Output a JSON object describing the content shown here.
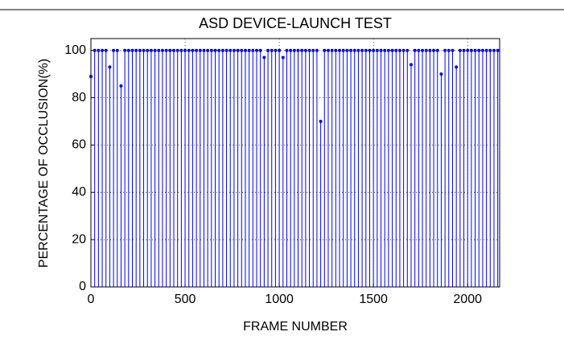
{
  "chart_data": {
    "type": "stem",
    "title": "ASD DEVICE-LAUNCH TEST",
    "x_label": "FRAME NUMBER",
    "y_label": "PERCENTAGE OF OCCLUSION(%)",
    "color": "#0000ff",
    "grid": true,
    "xlim": [
      0,
      2170
    ],
    "xticks": [
      0,
      500,
      1000,
      1500,
      2000
    ],
    "ylim": [
      0,
      105
    ],
    "yticks": [
      0,
      20,
      40,
      60,
      80,
      100
    ],
    "x": [
      0,
      20,
      40,
      60,
      80,
      100,
      120,
      140,
      160,
      180,
      200,
      220,
      240,
      260,
      280,
      300,
      320,
      340,
      360,
      380,
      400,
      420,
      440,
      460,
      480,
      500,
      520,
      540,
      560,
      580,
      600,
      620,
      640,
      660,
      680,
      700,
      720,
      740,
      760,
      780,
      800,
      820,
      840,
      860,
      880,
      900,
      920,
      940,
      960,
      980,
      1000,
      1020,
      1040,
      1060,
      1080,
      1100,
      1120,
      1140,
      1160,
      1180,
      1200,
      1220,
      1240,
      1260,
      1280,
      1300,
      1320,
      1340,
      1360,
      1380,
      1400,
      1420,
      1440,
      1460,
      1480,
      1500,
      1520,
      1540,
      1560,
      1580,
      1600,
      1620,
      1640,
      1660,
      1680,
      1700,
      1720,
      1740,
      1760,
      1780,
      1800,
      1820,
      1840,
      1860,
      1880,
      1900,
      1920,
      1940,
      1960,
      1980,
      2000,
      2020,
      2040,
      2060,
      2080,
      2100,
      2120,
      2140,
      2160
    ],
    "values": [
      89,
      100,
      100,
      100,
      100,
      93,
      100,
      100,
      85,
      100,
      100,
      100,
      100,
      100,
      100,
      100,
      100,
      100,
      100,
      100,
      100,
      100,
      100,
      100,
      100,
      100,
      100,
      100,
      100,
      100,
      100,
      100,
      100,
      100,
      100,
      100,
      100,
      100,
      100,
      100,
      100,
      100,
      100,
      100,
      100,
      100,
      97,
      100,
      100,
      100,
      100,
      97,
      100,
      100,
      100,
      100,
      100,
      100,
      100,
      100,
      100,
      70,
      100,
      100,
      100,
      100,
      100,
      100,
      100,
      100,
      100,
      100,
      100,
      100,
      100,
      100,
      100,
      100,
      100,
      100,
      100,
      100,
      100,
      100,
      100,
      94,
      100,
      100,
      100,
      100,
      100,
      100,
      100,
      90,
      100,
      100,
      100,
      93,
      100,
      100,
      100,
      100,
      100,
      100,
      100,
      100,
      100,
      100,
      100
    ]
  }
}
